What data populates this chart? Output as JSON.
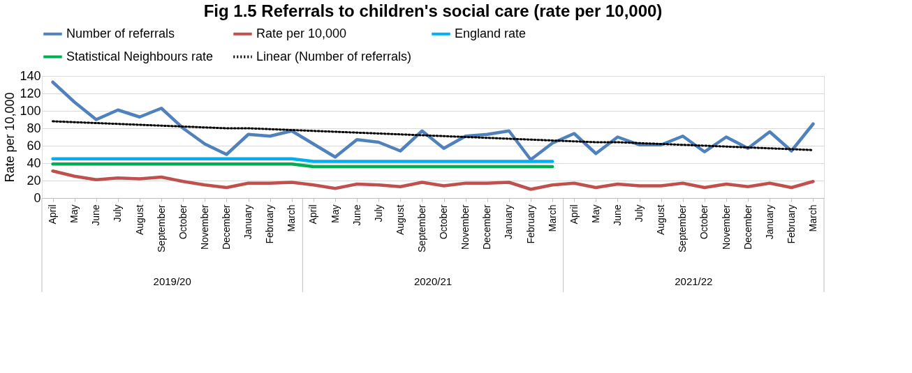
{
  "chart_data": {
    "type": "line",
    "title": "Fig 1.5 Referrals to children's social care (rate per 10,000)",
    "ylabel": "Rate per 10,000",
    "categories": [
      "April",
      "May",
      "June",
      "July",
      "August",
      "September",
      "October",
      "November",
      "December",
      "January",
      "February",
      "March",
      "April",
      "May",
      "June",
      "July",
      "August",
      "September",
      "October",
      "November",
      "December",
      "January",
      "February",
      "March",
      "April",
      "May",
      "June",
      "July",
      "August",
      "September",
      "October",
      "November",
      "December",
      "January",
      "February",
      "March"
    ],
    "annotations": [
      "2019/20",
      "2020/21",
      "2021/22"
    ],
    "series": [
      {
        "name": "Number of referrals",
        "color": "#4f81bd",
        "line_style": "solid",
        "values": [
          133,
          110,
          90,
          101,
          93,
          103,
          80,
          62,
          50,
          73,
          71,
          77,
          62,
          47,
          67,
          64,
          54,
          77,
          57,
          71,
          73,
          77,
          44,
          63,
          74,
          51,
          70,
          61,
          61,
          71,
          53,
          70,
          57,
          76,
          54,
          85
        ]
      },
      {
        "name": "Rate per 10,000",
        "color": "#c0504d",
        "line_style": "solid",
        "values": [
          31,
          25,
          21,
          23,
          22,
          24,
          19,
          15,
          12,
          17,
          17,
          18,
          15,
          11,
          16,
          15,
          13,
          18,
          14,
          17,
          17,
          18,
          10,
          15,
          17,
          12,
          16,
          14,
          14,
          17,
          12,
          16,
          13,
          17,
          12,
          19
        ]
      },
      {
        "name": "England rate",
        "color": "#00b0f0",
        "line_style": "solid",
        "values": [
          45,
          45,
          45,
          45,
          45,
          45,
          45,
          45,
          45,
          45,
          45,
          45,
          42,
          42,
          42,
          42,
          42,
          42,
          42,
          42,
          42,
          42,
          42,
          42,
          null,
          null,
          null,
          null,
          null,
          null,
          null,
          null,
          null,
          null,
          null,
          null
        ]
      },
      {
        "name": "Statistical Neighbours rate",
        "color": "#00b050",
        "line_style": "solid",
        "values": [
          39,
          39,
          39,
          39,
          39,
          39,
          39,
          39,
          39,
          39,
          39,
          39,
          36,
          36,
          36,
          36,
          36,
          36,
          36,
          36,
          36,
          36,
          36,
          36,
          null,
          null,
          null,
          null,
          null,
          null,
          null,
          null,
          null,
          null,
          null,
          null
        ]
      },
      {
        "name": "Linear (Number of referrals)",
        "color": "#000000",
        "line_style": "dotted",
        "values": [
          88,
          87,
          86,
          85,
          84,
          83,
          82,
          81,
          80,
          80,
          79,
          78,
          77,
          76,
          75,
          74,
          73,
          72,
          71,
          70,
          69,
          68,
          67,
          66,
          65,
          64,
          64,
          63,
          62,
          61,
          60,
          59,
          58,
          57,
          56,
          55
        ]
      }
    ],
    "ylim": [
      0,
      140
    ],
    "yticks": [
      0,
      20,
      40,
      60,
      80,
      100,
      120,
      140
    ],
    "grid": "y",
    "legend": "top",
    "marker": "none"
  }
}
